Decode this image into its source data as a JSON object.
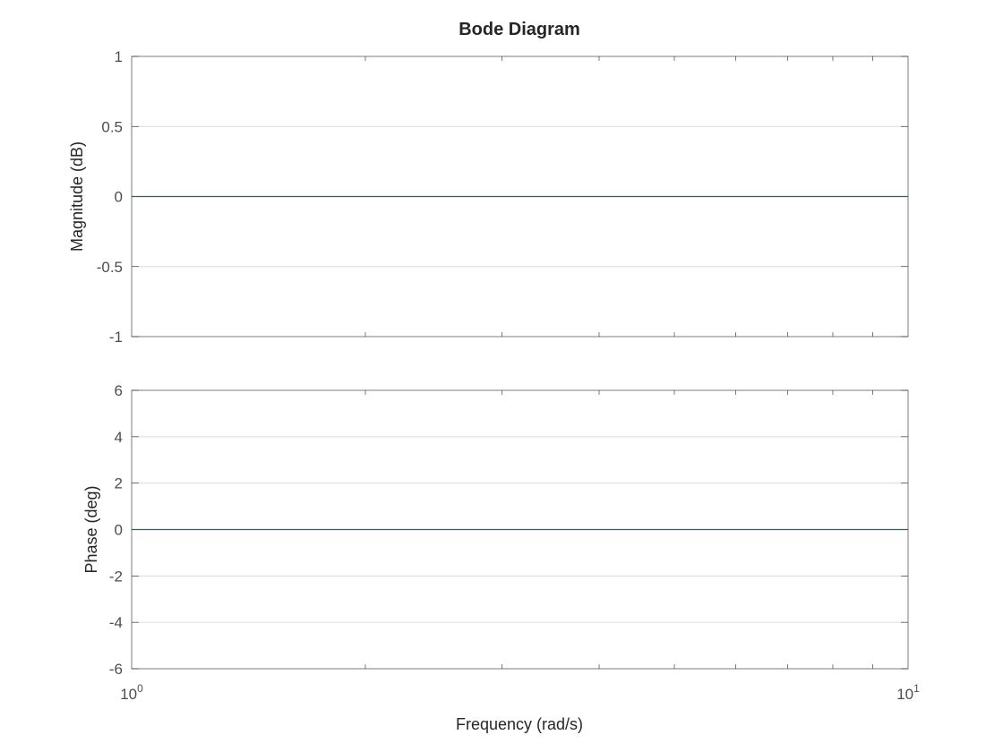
{
  "chart_data": {
    "type": "line",
    "title": "Bode Diagram",
    "xlabel": "Frequency (rad/s)",
    "xscale": "log",
    "xlim": [
      1,
      10
    ],
    "x_tick_labels": [
      {
        "value": 1,
        "base": "10",
        "exp": "0"
      },
      {
        "value": 10,
        "base": "10",
        "exp": "1"
      }
    ],
    "grid": true,
    "series_color": "#0b6e70",
    "panels": [
      {
        "name": "magnitude",
        "ylabel": "Magnitude (dB)",
        "ylim": [
          -1,
          1
        ],
        "y_ticks": [
          1,
          0.5,
          0,
          -0.5,
          -1
        ],
        "y_tick_labels": [
          "1",
          "0.5",
          "0",
          "-0.5",
          "-1"
        ],
        "series": [
          {
            "x": [
              1,
              10
            ],
            "y": [
              0,
              0
            ]
          }
        ]
      },
      {
        "name": "phase",
        "ylabel": "Phase (deg)",
        "ylim": [
          -6,
          6
        ],
        "y_ticks": [
          6,
          4,
          2,
          0,
          -2,
          -4,
          -6
        ],
        "y_tick_labels": [
          "6",
          "4",
          "2",
          "0",
          "-2",
          "-4",
          "-6"
        ],
        "series": [
          {
            "x": [
              1,
              10
            ],
            "y": [
              0,
              0
            ]
          }
        ]
      }
    ]
  }
}
